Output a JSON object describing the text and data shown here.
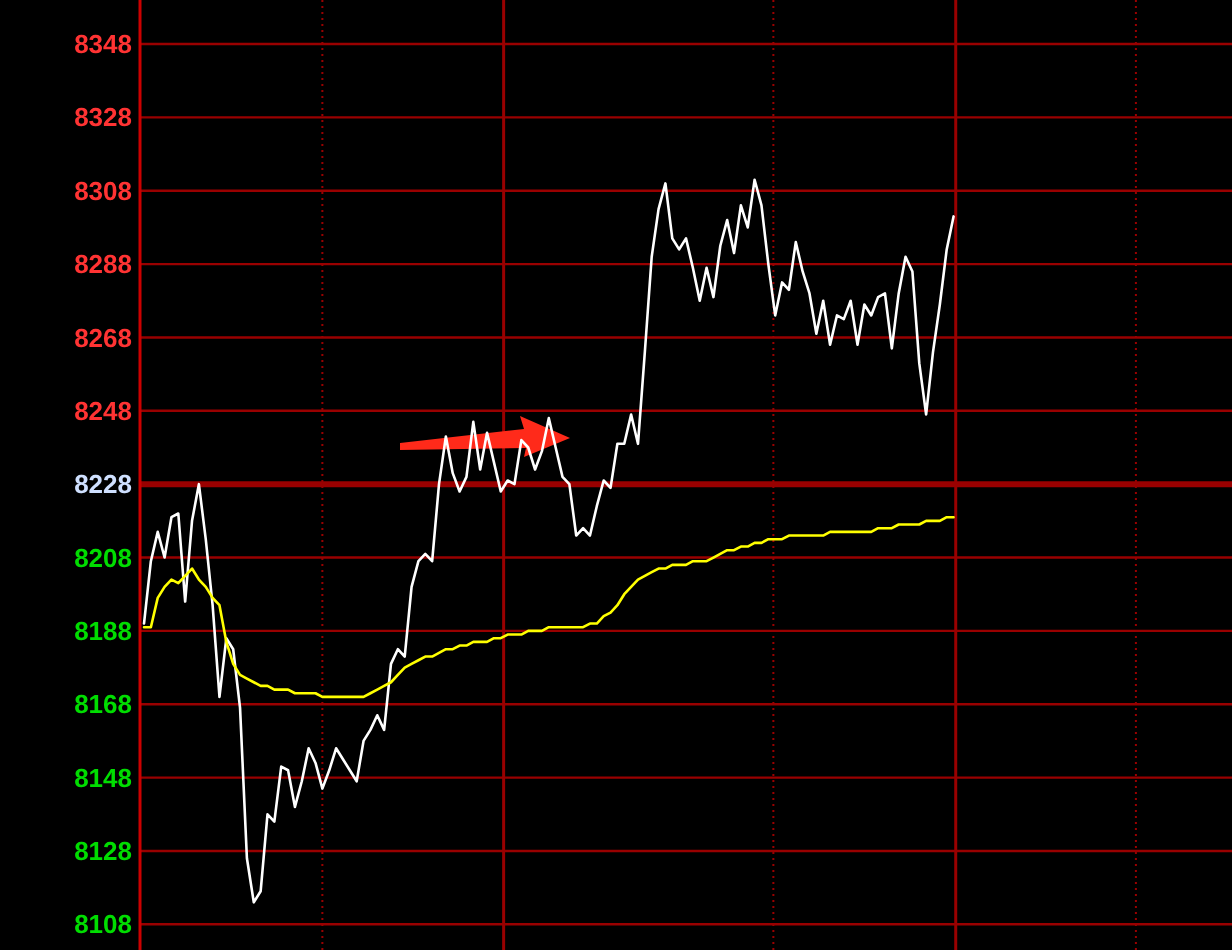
{
  "chart_data": {
    "type": "line",
    "categories": [
      null,
      null,
      null,
      null,
      null,
      null,
      null,
      null,
      null,
      null,
      null,
      null,
      null,
      null,
      null,
      null,
      null,
      null,
      null,
      null,
      null,
      null,
      null,
      null,
      null,
      null,
      null,
      null,
      null,
      null,
      null,
      null,
      null,
      null,
      null,
      null,
      null,
      null,
      null,
      null,
      null,
      null,
      null,
      null,
      null,
      null,
      null,
      null,
      null,
      null,
      null,
      null,
      null,
      null,
      null,
      null,
      null,
      null,
      null,
      null,
      null,
      null,
      null,
      null,
      null,
      null,
      null,
      null,
      null,
      null,
      null,
      null,
      null,
      null,
      null,
      null,
      null,
      null,
      null,
      null,
      null,
      null,
      null,
      null,
      null,
      null,
      null,
      null,
      null,
      null,
      null,
      null,
      null,
      null,
      null,
      null,
      null,
      null,
      null,
      null,
      null,
      null,
      null,
      null,
      null,
      null,
      null,
      null,
      null,
      null,
      null,
      null,
      null,
      null,
      null,
      null,
      null,
      null,
      null,
      null,
      null,
      null,
      null,
      null,
      null,
      null,
      null,
      null,
      null,
      null,
      null,
      null,
      null,
      null,
      null,
      null,
      null,
      null,
      null,
      null,
      null,
      null,
      null,
      null,
      null,
      null,
      null,
      null,
      null,
      null,
      null,
      null,
      null,
      null,
      null,
      null,
      null,
      null,
      null
    ],
    "ylim": [
      8101,
      8360
    ],
    "yticks": [
      8108,
      8128,
      8148,
      8168,
      8188,
      8208,
      8228,
      8248,
      8268,
      8288,
      8308,
      8328,
      8348
    ],
    "grid": "y",
    "ref_lines": [
      {
        "axis": "y",
        "value": 8228,
        "color": "#990000"
      }
    ],
    "series": [
      {
        "color": "#ffffff",
        "values": [
          8190,
          8207,
          8215,
          8208,
          8219,
          8220,
          8196,
          8218,
          8228,
          8213,
          8195,
          8170,
          8186,
          8183,
          8167,
          8126,
          8114,
          8117,
          8138,
          8136,
          8151,
          8150,
          8140,
          8147,
          8156,
          8152,
          8145,
          8150,
          8156,
          8153,
          8150,
          8147,
          8158,
          8161,
          8165,
          8161,
          8179,
          8183,
          8181,
          8200,
          8207,
          8209,
          8207,
          8228,
          8241,
          8231,
          8226,
          8230,
          8245,
          8232,
          8242,
          8234,
          8226,
          8229,
          8228,
          8240,
          8238,
          8232,
          8237,
          8246,
          8238,
          8230,
          8228,
          8214,
          8216,
          8214,
          8222,
          8229,
          8227,
          8239,
          8239,
          8247,
          8239,
          8264,
          8290,
          8303,
          8310,
          8295,
          8292,
          8295,
          8287,
          8278,
          8287,
          8279,
          8293,
          8300,
          8291,
          8304,
          8298,
          8311,
          8304,
          8288,
          8274,
          8283,
          8281,
          8294,
          8286,
          8280,
          8269,
          8278,
          8266,
          8274,
          8273,
          8278,
          8266,
          8277,
          8274,
          8279,
          8280,
          8265,
          8280,
          8290,
          8286,
          8261,
          8247,
          8264,
          8277,
          8292,
          8301,
          null,
          null,
          null,
          null,
          null,
          null,
          null,
          null,
          null,
          null,
          null,
          null,
          null,
          null,
          null,
          null,
          null,
          null,
          null,
          null,
          null,
          null,
          null,
          null,
          null,
          null,
          null,
          null,
          null,
          null,
          null,
          null,
          null,
          null,
          null,
          null,
          null,
          null,
          null,
          null
        ]
      },
      {
        "color": "#ffff00",
        "values": [
          8189,
          8189,
          8197,
          8200,
          8202,
          8201,
          8203,
          8205,
          8202,
          8200,
          8197,
          8195,
          8185,
          8179,
          8176,
          8175,
          8174,
          8173,
          8173,
          8172,
          8172,
          8172,
          8171,
          8171,
          8171,
          8171,
          8170,
          8170,
          8170,
          8170,
          8170,
          8170,
          8170,
          8171,
          8172,
          8173,
          8174,
          8176,
          8178,
          8179,
          8180,
          8181,
          8181,
          8182,
          8183,
          8183,
          8184,
          8184,
          8185,
          8185,
          8185,
          8186,
          8186,
          8187,
          8187,
          8187,
          8188,
          8188,
          8188,
          8189,
          8189,
          8189,
          8189,
          8189,
          8189,
          8190,
          8190,
          8192,
          8193,
          8195,
          8198,
          8200,
          8202,
          8203,
          8204,
          8205,
          8205,
          8206,
          8206,
          8206,
          8207,
          8207,
          8207,
          8208,
          8209,
          8210,
          8210,
          8211,
          8211,
          8212,
          8212,
          8213,
          8213,
          8213,
          8214,
          8214,
          8214,
          8214,
          8214,
          8214,
          8215,
          8215,
          8215,
          8215,
          8215,
          8215,
          8215,
          8216,
          8216,
          8216,
          8217,
          8217,
          8217,
          8217,
          8218,
          8218,
          8218,
          8219,
          8219,
          null,
          null,
          null,
          null,
          null,
          null,
          null,
          null,
          null,
          null,
          null,
          null,
          null,
          null,
          null,
          null,
          null,
          null,
          null,
          null,
          null,
          null,
          null,
          null,
          null,
          null,
          null,
          null,
          null,
          null,
          null,
          null,
          null,
          null,
          null,
          null,
          null,
          null,
          null,
          null
        ]
      }
    ]
  }
}
